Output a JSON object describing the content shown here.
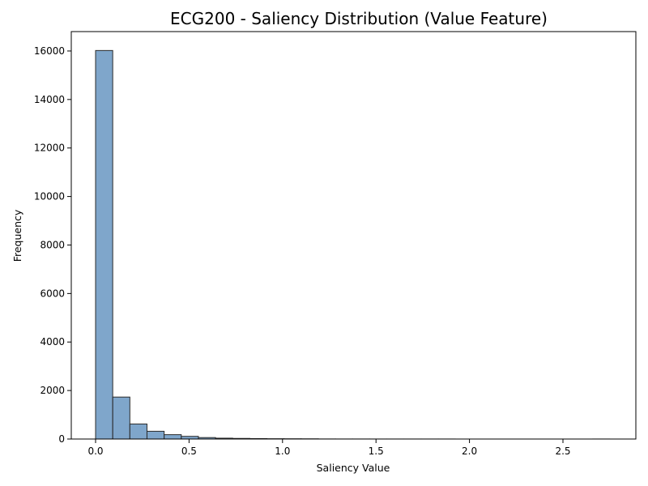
{
  "chart_data": {
    "type": "bar",
    "subtype": "histogram",
    "title": "ECG200 - Saliency Distribution (Value Feature)",
    "xlabel": "Saliency Value",
    "ylabel": "Frequency",
    "xlim": [
      -0.13,
      2.89
    ],
    "ylim": [
      0,
      16800
    ],
    "xticks": [
      0.0,
      0.5,
      1.0,
      1.5,
      2.0,
      2.5
    ],
    "xtick_labels": [
      "0.0",
      "0.5",
      "1.0",
      "1.5",
      "2.0",
      "2.5"
    ],
    "yticks": [
      0,
      2000,
      4000,
      6000,
      8000,
      10000,
      12000,
      14000,
      16000
    ],
    "ytick_labels": [
      "0",
      "2000",
      "4000",
      "6000",
      "8000",
      "10000",
      "12000",
      "14000",
      "16000"
    ],
    "bin_width": 0.0917,
    "bin_starts": [
      0.0,
      0.0917,
      0.1833,
      0.275,
      0.3667,
      0.4583,
      0.55,
      0.6417,
      0.7333,
      0.825,
      0.9167,
      1.0083,
      1.1,
      1.1917,
      1.2833,
      1.375,
      1.4667,
      1.5583,
      1.65,
      1.7417,
      1.8333,
      1.925,
      2.0167,
      2.1083,
      2.2,
      2.2917,
      2.3833,
      2.475,
      2.5667,
      2.6583
    ],
    "values": [
      16020,
      1730,
      620,
      320,
      180,
      110,
      60,
      35,
      25,
      18,
      12,
      10,
      8,
      3,
      2,
      2,
      1,
      1,
      1,
      1,
      1,
      0,
      0,
      0,
      0,
      0,
      0,
      0,
      0,
      1
    ],
    "bar_color": "#5b8dbd",
    "bar_opacity": 0.78,
    "edge_color": "#2b2b2b",
    "grid": false,
    "legend": "none"
  }
}
